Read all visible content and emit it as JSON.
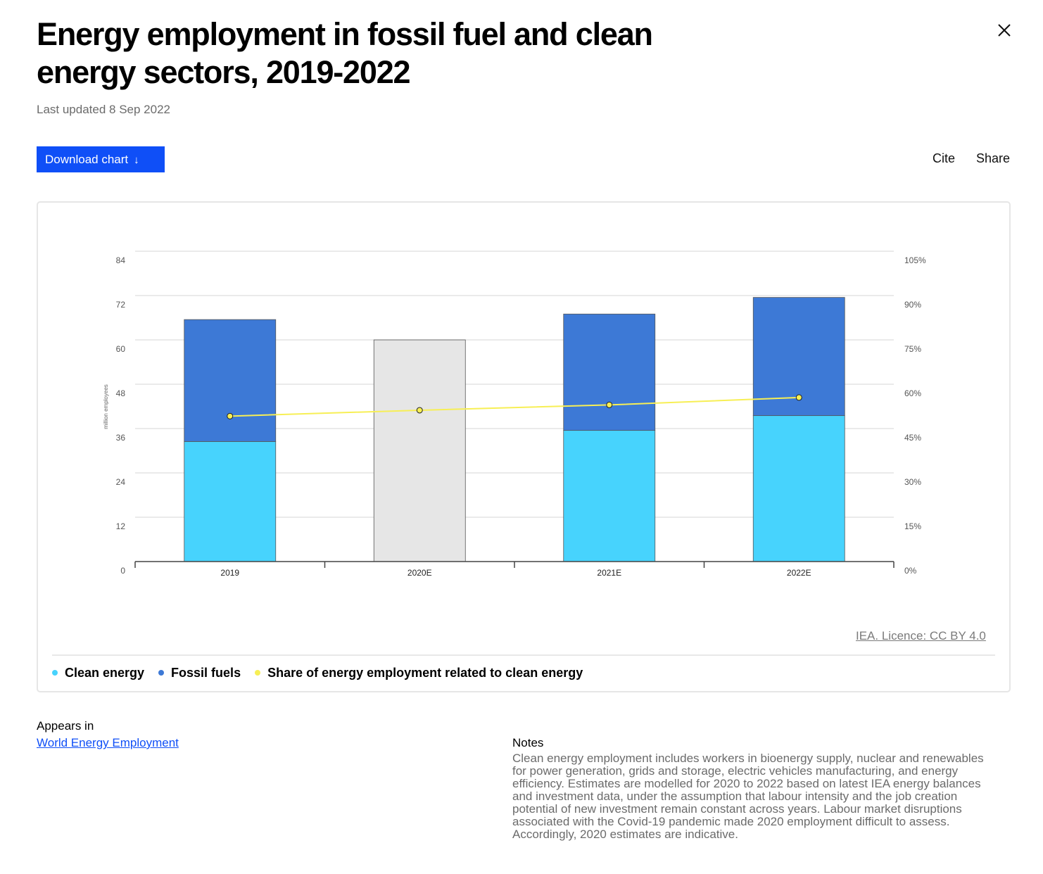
{
  "header": {
    "title": "Energy employment in fossil fuel and clean energy sectors, 2019-2022",
    "last_updated": "Last updated 8 Sep 2022",
    "close_icon": "close-icon"
  },
  "toolbar": {
    "download_label": "Download chart",
    "download_icon": "↓",
    "cite_label": "Cite",
    "share_label": "Share",
    "accent_color": "#0f4ff7"
  },
  "chart_data": {
    "type": "bar",
    "stacked": true,
    "categories": [
      "2019",
      "2020E",
      "2021E",
      "2022E"
    ],
    "series": [
      {
        "name": "Clean energy",
        "axis": "left",
        "color": "#47d3fd",
        "values": [
          32.5,
          null,
          35.5,
          39.5
        ]
      },
      {
        "name": "Fossil fuels",
        "axis": "left",
        "color": "#3d79d6",
        "values": [
          33.0,
          null,
          31.5,
          32.0
        ]
      },
      {
        "name": "Share of energy employment related to clean energy",
        "type": "line",
        "axis": "right",
        "color": "#f7ef55",
        "values": [
          49.2,
          51.2,
          53.0,
          55.5
        ]
      }
    ],
    "unsplit_total": {
      "category": "2020E",
      "value": 60,
      "color": "#e6e6e6"
    },
    "ylabel": "million employees",
    "ylim": [
      0,
      84
    ],
    "y_ticks": [
      "0",
      "12",
      "24",
      "36",
      "48",
      "60",
      "72",
      "84"
    ],
    "y2lim": [
      0,
      105
    ],
    "y2_ticks": [
      "0%",
      "15%",
      "30%",
      "45%",
      "60%",
      "75%",
      "90%",
      "105%"
    ],
    "grid": true,
    "legend_position": "bottom-left"
  },
  "licence": "IEA. Licence: CC BY 4.0",
  "appears_in": {
    "label": "Appears in",
    "link": "World Energy Employment"
  },
  "notes": {
    "label": "Notes",
    "text": "Clean energy employment includes workers in bioenergy supply, nuclear and renewables for power generation, grids and storage, electric vehicles manufacturing, and energy efficiency. Estimates are modelled for 2020 to 2022 based on latest IEA energy balances and investment data, under the assumption that labour intensity and the job creation potential of new investment remain constant across years. Labour market disruptions associated with the Covid-19 pandemic made 2020 employment difficult to assess. Accordingly, 2020 estimates are indicative."
  }
}
